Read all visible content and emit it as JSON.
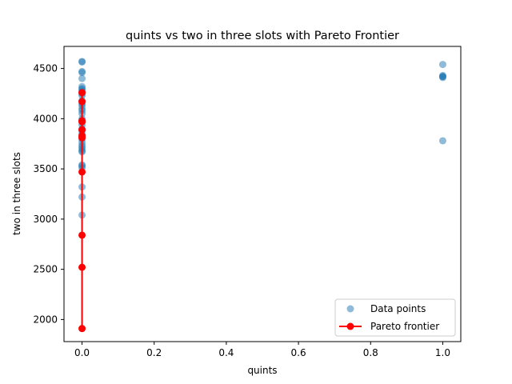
{
  "chart_data": {
    "type": "scatter",
    "title": "quints vs two in three slots with Pareto Frontier",
    "xlabel": "quints",
    "ylabel": "two in three slots",
    "xlim": [
      -0.05,
      1.05
    ],
    "ylim": [
      1780,
      4720
    ],
    "xticks": [
      0.0,
      0.2,
      0.4,
      0.6,
      0.8,
      1.0
    ],
    "xtick_labels": [
      "0.0",
      "0.2",
      "0.4",
      "0.6",
      "0.8",
      "1.0"
    ],
    "yticks": [
      2000,
      2500,
      3000,
      3500,
      4000,
      4500
    ],
    "ytick_labels": [
      "2000",
      "2500",
      "3000",
      "3500",
      "4000",
      "4500"
    ],
    "grid": false,
    "legend_position": "lower-right",
    "series": [
      {
        "name": "Data points",
        "kind": "scatter",
        "color": "#1f77b4",
        "alpha": 0.5,
        "x": [
          0,
          0,
          0,
          0,
          0,
          0,
          0,
          0,
          0,
          0,
          0,
          0,
          0,
          0,
          0,
          0,
          0,
          0,
          0,
          0,
          0,
          0,
          0,
          0,
          0,
          0,
          0,
          0,
          0,
          0,
          0,
          0,
          0,
          0,
          0,
          0,
          0,
          0,
          1,
          1,
          1,
          1,
          1,
          1
        ],
        "y": [
          4570,
          4565,
          4470,
          4460,
          4400,
          4320,
          4300,
          4290,
          4270,
          4250,
          4230,
          4180,
          4150,
          4130,
          4100,
          4080,
          4050,
          4000,
          3980,
          3970,
          3940,
          3900,
          3880,
          3850,
          3820,
          3800,
          3770,
          3740,
          3720,
          3700,
          3680,
          3670,
          3540,
          3530,
          3510,
          3320,
          3220,
          3040,
          4540,
          4430,
          4420,
          4410,
          4420,
          3780
        ]
      },
      {
        "name": "Pareto frontier",
        "kind": "line",
        "color": "#ff0000",
        "x": [
          0,
          0,
          0,
          0,
          0,
          0,
          0,
          0,
          0,
          0,
          0
        ],
        "y": [
          4260,
          4170,
          3980,
          3970,
          3890,
          3830,
          3810,
          3470,
          2840,
          2520,
          1910
        ]
      }
    ]
  }
}
